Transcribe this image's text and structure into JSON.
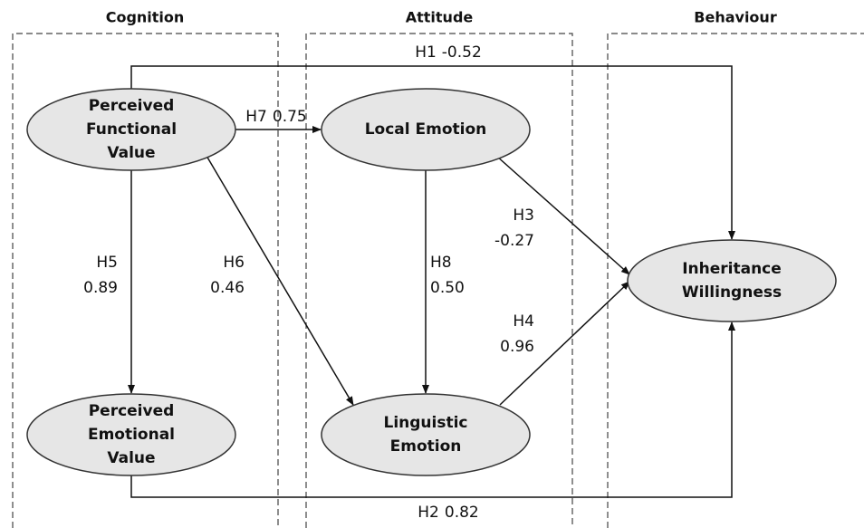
{
  "groups": [
    {
      "title": "Cognition"
    },
    {
      "title": "Attitude"
    },
    {
      "title": "Behaviour"
    }
  ],
  "nodes": [
    {
      "label": [
        "Perceived",
        "Functional",
        "Value"
      ]
    },
    {
      "label": [
        "Local Emotion"
      ]
    },
    {
      "label": [
        "Inheritance",
        "Willingness"
      ]
    },
    {
      "label": [
        "Perceived",
        "Emotional",
        "Value"
      ]
    },
    {
      "label": [
        "Linguistic",
        "Emotion"
      ]
    }
  ],
  "edges": [
    {
      "name": "H1",
      "coef": "-0.52"
    },
    {
      "name": "H7",
      "coef": "0.75"
    },
    {
      "name": "H5",
      "coef": "0.89"
    },
    {
      "name": "H6",
      "coef": "0.46"
    },
    {
      "name": "H8",
      "coef": "0.50"
    },
    {
      "name": "H3",
      "coef": "-0.27"
    },
    {
      "name": "H4",
      "coef": "0.96"
    },
    {
      "name": "H2",
      "coef": "0.82"
    }
  ]
}
